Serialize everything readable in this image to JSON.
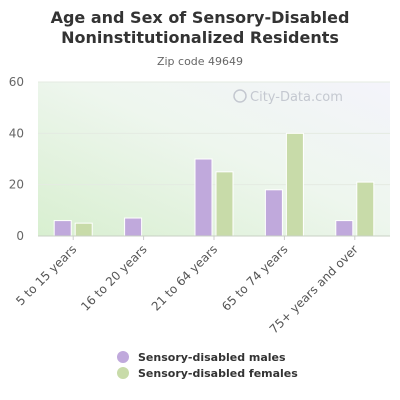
{
  "chart_data": {
    "type": "bar",
    "title": "Age and Sex of Sensory-Disabled Noninstitutionalized Residents",
    "subtitle": "Zip code 49649",
    "categories": [
      "5 to 15 years",
      "16 to 20 years",
      "21 to 64 years",
      "65 to 74 years",
      "75+ years and over"
    ],
    "series": [
      {
        "name": "Sensory-disabled males",
        "values": [
          6,
          7,
          30,
          18,
          6
        ],
        "color": "#c0a9dc"
      },
      {
        "name": "Sensory-disabled females",
        "values": [
          5,
          0,
          25,
          40,
          21
        ],
        "color": "#c8dba9"
      }
    ],
    "y_ticks": [
      0,
      20,
      40,
      60
    ],
    "ylim": [
      0,
      60
    ],
    "xlabel": "",
    "ylabel": "",
    "grid": true,
    "legend_position": "bottom"
  },
  "watermark": "City-Data.com"
}
